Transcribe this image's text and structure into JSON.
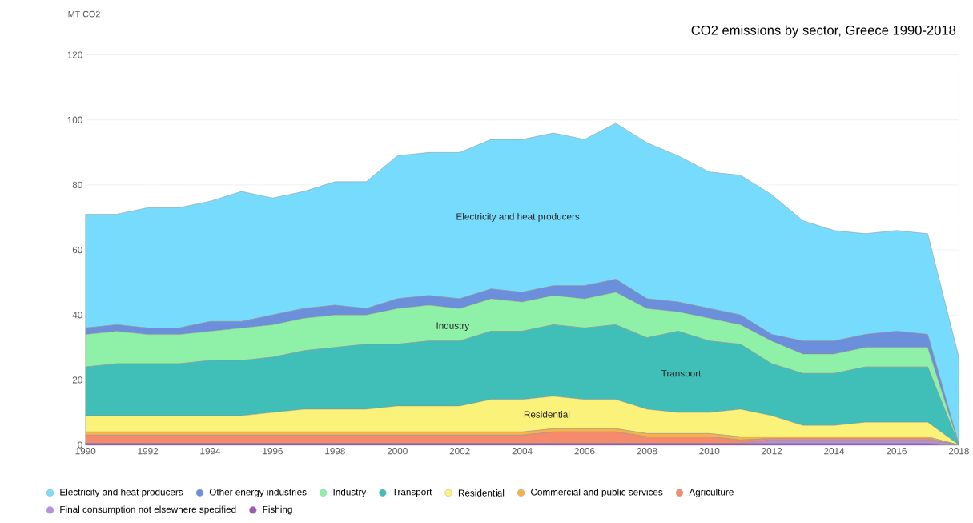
{
  "chart_data": {
    "type": "area",
    "stacked": true,
    "title": "CO2 emissions by sector, Greece 1990-2018",
    "ylabel": "MT CO2",
    "x": [
      1990,
      1991,
      1992,
      1993,
      1994,
      1995,
      1996,
      1997,
      1998,
      1999,
      2000,
      2001,
      2002,
      2003,
      2004,
      2005,
      2006,
      2007,
      2008,
      2009,
      2010,
      2011,
      2012,
      2013,
      2014,
      2015,
      2016,
      2017,
      2018
    ],
    "series": [
      {
        "name": "Fishing",
        "color": "#9b59b6",
        "values": [
          0.5,
          0.5,
          0.5,
          0.5,
          0.5,
          0.5,
          0.5,
          0.5,
          0.5,
          0.5,
          0.5,
          0.5,
          0.5,
          0.5,
          0.5,
          0.5,
          0.5,
          0.5,
          0.5,
          0.5,
          0.5,
          0.5,
          0.5,
          0.5,
          0.5,
          0.5,
          0.5,
          0.5,
          0
        ]
      },
      {
        "name": "Final consumption not elsewhere specified",
        "color": "#b88fe0",
        "values": [
          0,
          0,
          0,
          0,
          0,
          0,
          0,
          0,
          0,
          0,
          0,
          0,
          0,
          0,
          0,
          0,
          0,
          0,
          0,
          0,
          0,
          0,
          1,
          1,
          1,
          1,
          1,
          1,
          0
        ]
      },
      {
        "name": "Agriculture",
        "color": "#f58a6c",
        "values": [
          2.5,
          2.5,
          2.5,
          2.5,
          2.5,
          2.5,
          2.5,
          2.5,
          2.5,
          2.5,
          2.5,
          2.5,
          2.5,
          2.5,
          2.5,
          3.5,
          3.5,
          3.5,
          2,
          2,
          2,
          1,
          0.5,
          0.5,
          0.5,
          0.5,
          0.5,
          0.5,
          0
        ]
      },
      {
        "name": "Commercial and public services",
        "color": "#f5b14c",
        "values": [
          1,
          1,
          1,
          1,
          1,
          1,
          1,
          1,
          1,
          1,
          1,
          1,
          1,
          1,
          1,
          1,
          1,
          1,
          1,
          1,
          1,
          1,
          0.5,
          0.5,
          0.5,
          0.5,
          0.5,
          0.5,
          0
        ]
      },
      {
        "name": "Residential",
        "color": "#fbf27a",
        "values": [
          5,
          5,
          5,
          5,
          5,
          5,
          6,
          7,
          7,
          7,
          8,
          8,
          8,
          10,
          10,
          10,
          9,
          9,
          7.5,
          6.5,
          6.5,
          8.5,
          6.5,
          3.5,
          3.5,
          4.5,
          4.5,
          4.5,
          0
        ]
      },
      {
        "name": "Transport",
        "color": "#3fbfb8",
        "values": [
          15,
          16,
          16,
          16,
          17,
          17,
          17,
          18,
          19,
          20,
          19,
          20,
          20,
          21,
          21,
          22,
          22,
          23,
          22,
          25,
          22,
          20,
          16,
          16,
          16,
          17,
          17,
          17,
          0
        ]
      },
      {
        "name": "Industry",
        "color": "#8ff0a8",
        "values": [
          10,
          10,
          9,
          9,
          9,
          10,
          10,
          10,
          10,
          9,
          11,
          11,
          10,
          10,
          9,
          9,
          9,
          10,
          9,
          6,
          7,
          6,
          7,
          6,
          6,
          6,
          6,
          6,
          0
        ]
      },
      {
        "name": "Other energy industries",
        "color": "#6c8fdc",
        "values": [
          2,
          2,
          2,
          2,
          3,
          2,
          3,
          3,
          3,
          2,
          3,
          3,
          3,
          3,
          3,
          3,
          4,
          4,
          3,
          3,
          3,
          3,
          2,
          4,
          4,
          4,
          5,
          4,
          0
        ]
      },
      {
        "name": "Electricity and heat producers",
        "color": "#76dbfc",
        "values": [
          35,
          34,
          37,
          37,
          37,
          40,
          36,
          36,
          38,
          39,
          44,
          44,
          45,
          46,
          47,
          47,
          45,
          48,
          48,
          45,
          42,
          43,
          43,
          37,
          34,
          31,
          31,
          31,
          27
        ]
      }
    ],
    "xlim": [
      1990,
      2018
    ],
    "xticks": [
      1990,
      1992,
      1994,
      1996,
      1998,
      2000,
      2002,
      2004,
      2006,
      2008,
      2010,
      2012,
      2014,
      2016,
      2018
    ],
    "ylim": [
      0,
      120
    ],
    "yticks": [
      0,
      20,
      40,
      60,
      80,
      100,
      120
    ],
    "grid": "y",
    "legend": "bottom",
    "ref_lines": [
      {
        "axis": "x",
        "value": 2018,
        "line_style": "dotted",
        "color": "#bbbbbb"
      }
    ],
    "annotations": [
      "Electricity and heat producers",
      "Industry",
      "Transport",
      "Residential"
    ]
  }
}
